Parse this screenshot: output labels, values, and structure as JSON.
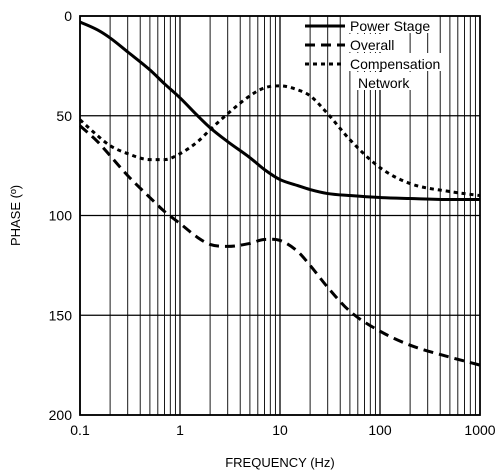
{
  "chart_data": {
    "type": "line",
    "xlabel": "FREQUENCY (Hz)",
    "ylabel": "PHASE (º)",
    "x_scale": "log",
    "xlim": [
      0.1,
      1000
    ],
    "ylim": [
      0,
      200
    ],
    "y_inverted": true,
    "grid": true,
    "legend_position": "top-right",
    "x_ticks": [
      {
        "value": 0.1,
        "label": "0.1"
      },
      {
        "value": 1,
        "label": "1"
      },
      {
        "value": 10,
        "label": "10"
      },
      {
        "value": 100,
        "label": "100"
      },
      {
        "value": 1000,
        "label": "1000"
      }
    ],
    "y_ticks": [
      {
        "value": 0,
        "label": "0"
      },
      {
        "value": 50,
        "label": "50"
      },
      {
        "value": 100,
        "label": "100"
      },
      {
        "value": 150,
        "label": "150"
      },
      {
        "value": 200,
        "label": "200"
      }
    ],
    "series": [
      {
        "name": "Power Stage",
        "style": "solid",
        "color": "#000000",
        "points": [
          [
            0.1,
            3
          ],
          [
            0.15,
            7
          ],
          [
            0.2,
            11
          ],
          [
            0.3,
            18
          ],
          [
            0.5,
            27
          ],
          [
            0.7,
            34
          ],
          [
            1,
            41
          ],
          [
            1.5,
            50
          ],
          [
            2,
            56
          ],
          [
            3,
            63
          ],
          [
            5,
            71
          ],
          [
            7,
            77
          ],
          [
            10,
            82
          ],
          [
            15,
            85
          ],
          [
            20,
            87
          ],
          [
            30,
            89
          ],
          [
            50,
            90
          ],
          [
            100,
            91
          ],
          [
            200,
            91.5
          ],
          [
            500,
            92
          ],
          [
            1000,
            92
          ]
        ]
      },
      {
        "name": "Overall",
        "style": "dashed",
        "color": "#000000",
        "points": [
          [
            0.1,
            55
          ],
          [
            0.15,
            63
          ],
          [
            0.2,
            70
          ],
          [
            0.3,
            80
          ],
          [
            0.5,
            91
          ],
          [
            0.7,
            98
          ],
          [
            1,
            104
          ],
          [
            1.5,
            111
          ],
          [
            2,
            114.5
          ],
          [
            3,
            115.5
          ],
          [
            5,
            114
          ],
          [
            7,
            112
          ],
          [
            10,
            112.5
          ],
          [
            15,
            118
          ],
          [
            20,
            125
          ],
          [
            30,
            136
          ],
          [
            50,
            148
          ],
          [
            100,
            158
          ],
          [
            200,
            165
          ],
          [
            500,
            171
          ],
          [
            1000,
            175
          ]
        ]
      },
      {
        "name": "Compensation Network",
        "style": "dotted",
        "color": "#000000",
        "points": [
          [
            0.1,
            52
          ],
          [
            0.15,
            60
          ],
          [
            0.2,
            65
          ],
          [
            0.3,
            69
          ],
          [
            0.5,
            72
          ],
          [
            0.7,
            72
          ],
          [
            1,
            69
          ],
          [
            1.5,
            63
          ],
          [
            2,
            57
          ],
          [
            3,
            49
          ],
          [
            5,
            40
          ],
          [
            7,
            36
          ],
          [
            10,
            35
          ],
          [
            15,
            37
          ],
          [
            20,
            40
          ],
          [
            30,
            49
          ],
          [
            50,
            62
          ],
          [
            100,
            76
          ],
          [
            200,
            84
          ],
          [
            500,
            88
          ],
          [
            1000,
            90
          ]
        ]
      }
    ],
    "legend": [
      {
        "label": "Power Stage",
        "style": "solid"
      },
      {
        "label": "Overall",
        "style": "dashed"
      },
      {
        "label": "Compensation",
        "style": "dotted"
      },
      {
        "label": "Network",
        "style": "none"
      }
    ]
  }
}
